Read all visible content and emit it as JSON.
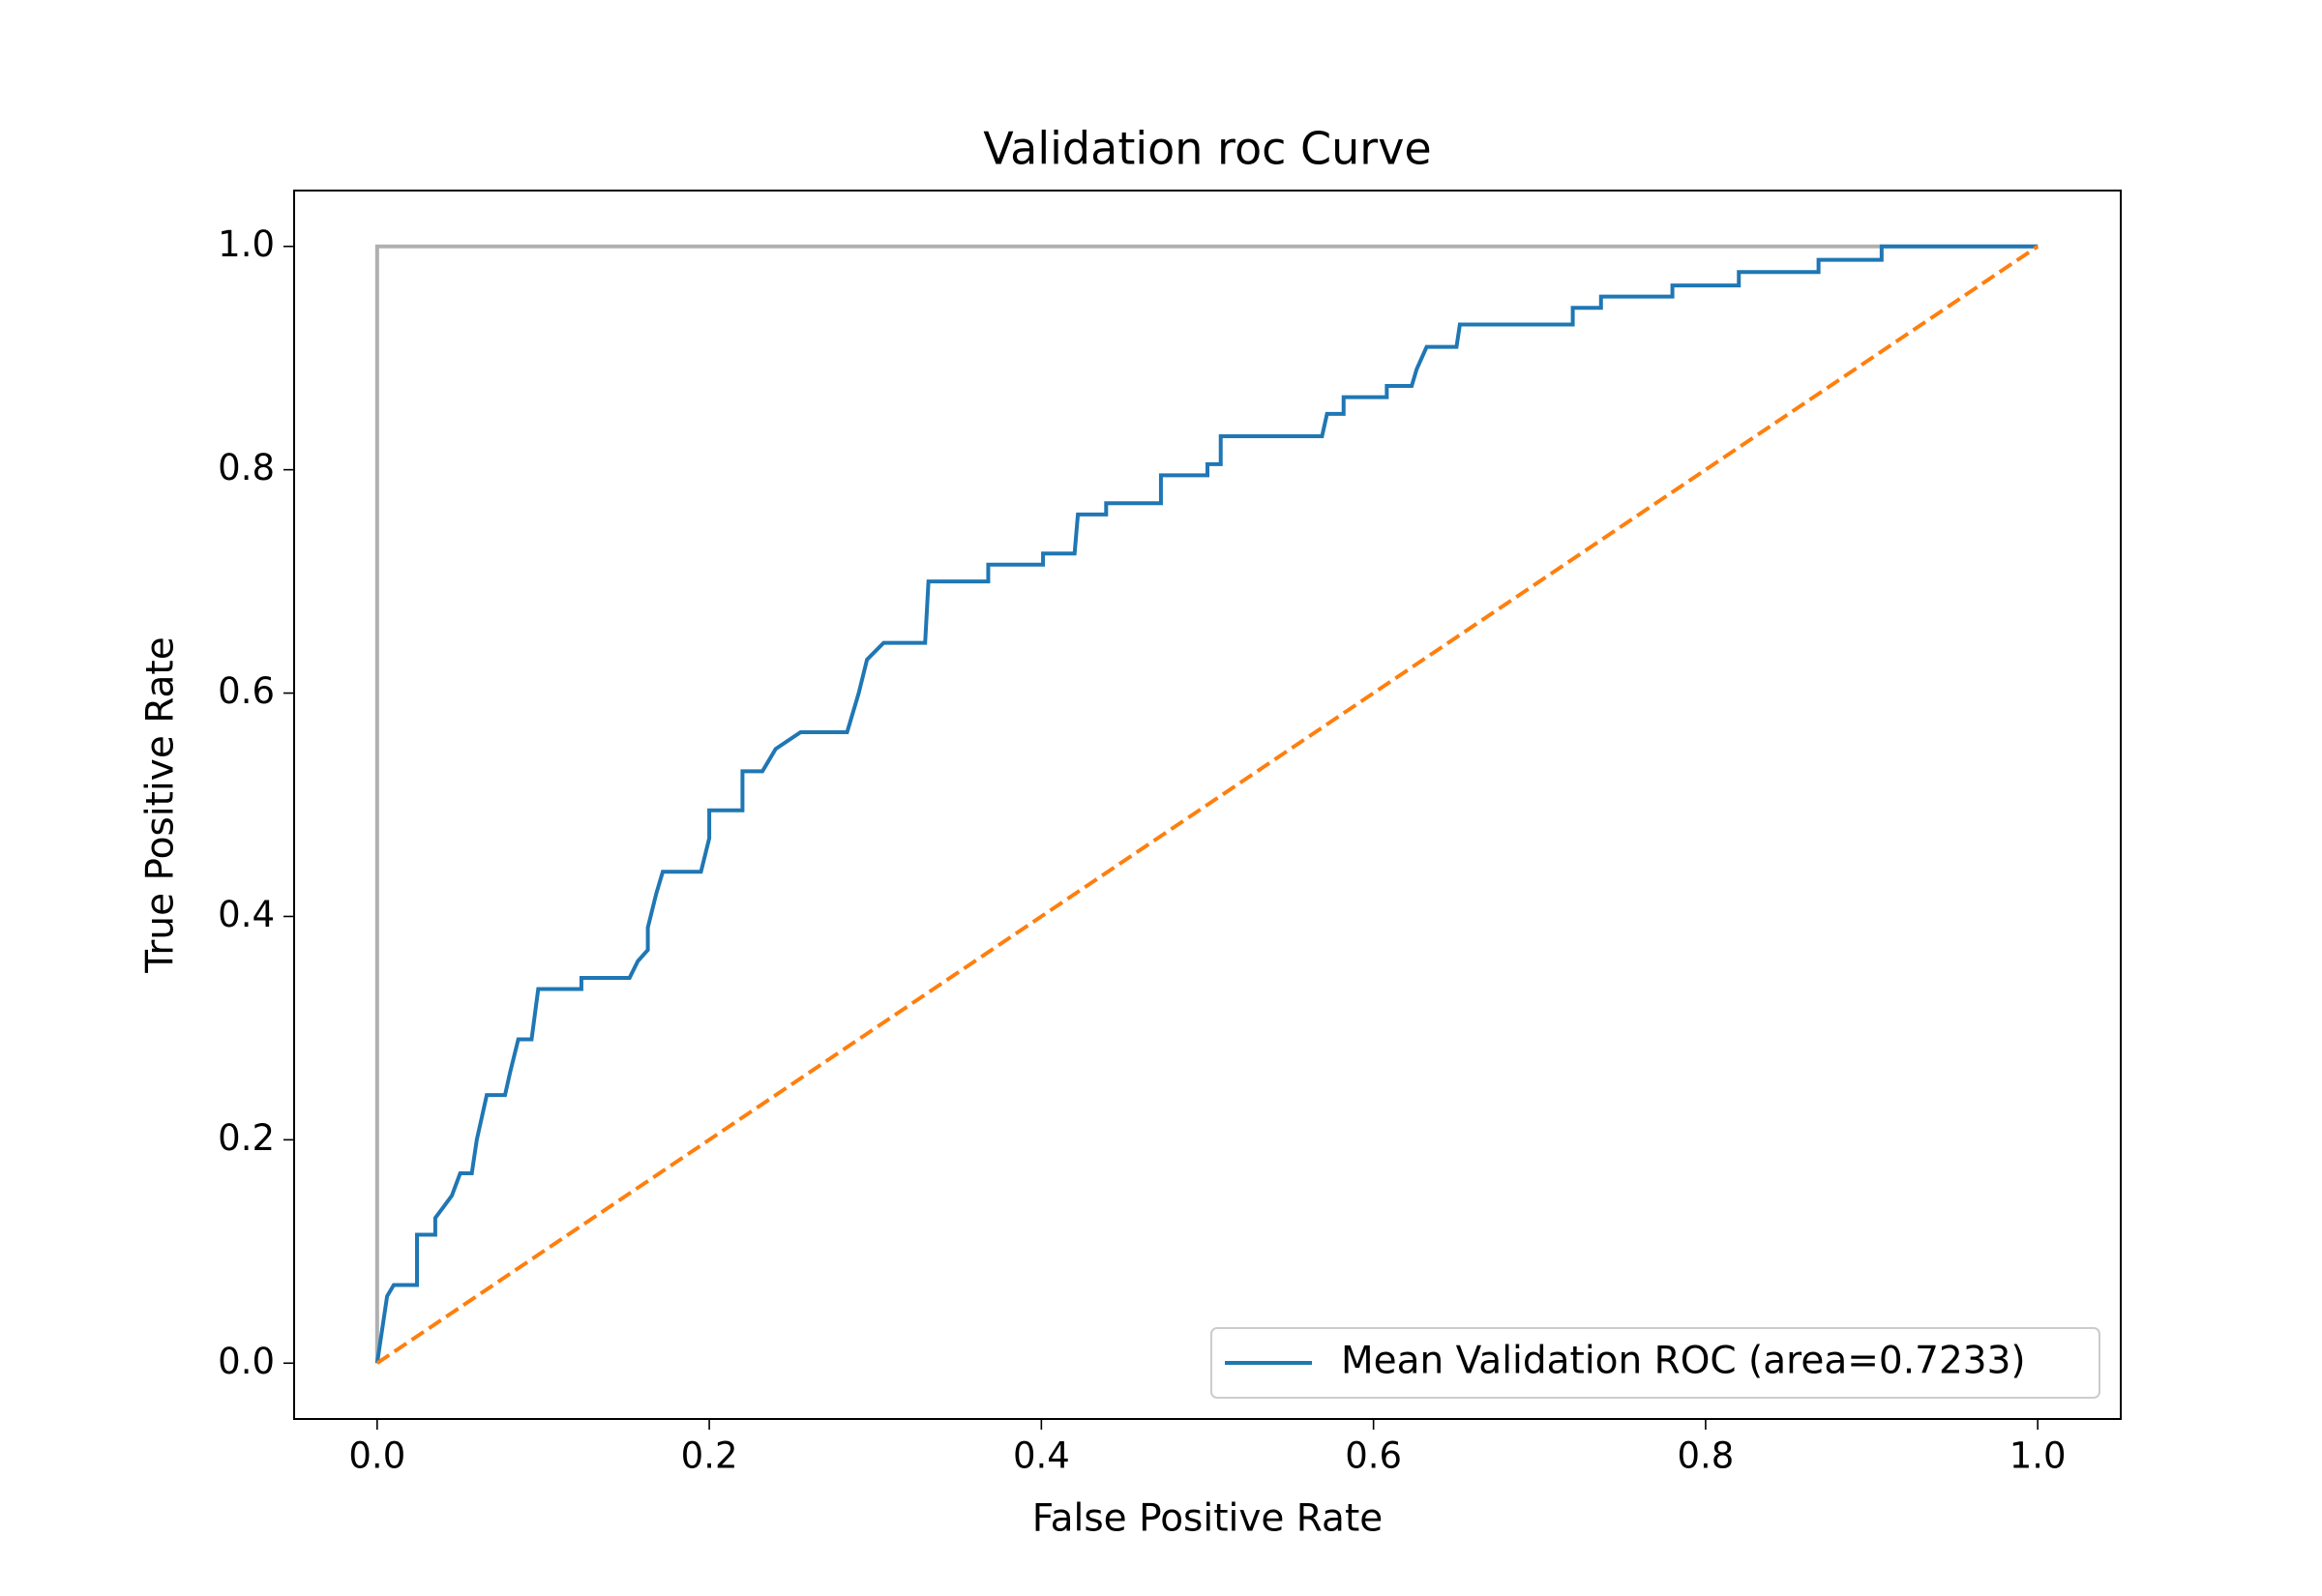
{
  "chart_data": {
    "type": "line",
    "title": "Validation roc Curve",
    "x_label": "False Positive Rate",
    "y_label": "True Positive Rate",
    "xlim": [
      -0.05,
      1.05
    ],
    "ylim": [
      -0.05,
      1.05
    ],
    "xticks": [
      {
        "value": 0,
        "label": "0.0"
      },
      0.2,
      0.4,
      0.6,
      0.8,
      {
        "value": 1,
        "label": "1.0"
      }
    ],
    "yticks": [
      {
        "value": 0,
        "label": "0.0"
      },
      0.2,
      0.4,
      0.6,
      0.8,
      {
        "value": 1,
        "label": "1.0"
      }
    ],
    "grid": false,
    "legend_position": "lower right",
    "series": [
      {
        "color": "#b0b0b0",
        "linestyle": "solid",
        "x": [
          0,
          0,
          1
        ],
        "values": [
          0,
          1,
          1
        ]
      },
      {
        "name": "Mean Validation ROC (area=0.7233)",
        "color": "#1f77b4",
        "linestyle": "solid",
        "x": [
          0,
          0.003,
          0.006,
          0.01,
          0.024,
          0.024,
          0.035,
          0.035,
          0.04,
          0.045,
          0.05,
          0.057,
          0.06,
          0.063,
          0.066,
          0.077,
          0.08,
          0.085,
          0.093,
          0.097,
          0.123,
          0.123,
          0.152,
          0.157,
          0.163,
          0.163,
          0.168,
          0.172,
          0.195,
          0.2,
          0.2,
          0.22,
          0.22,
          0.232,
          0.236,
          0.24,
          0.255,
          0.283,
          0.29,
          0.295,
          0.305,
          0.33,
          0.332,
          0.368,
          0.368,
          0.401,
          0.401,
          0.42,
          0.422,
          0.439,
          0.439,
          0.472,
          0.472,
          0.5,
          0.5,
          0.508,
          0.508,
          0.569,
          0.572,
          0.582,
          0.582,
          0.608,
          0.608,
          0.623,
          0.626,
          0.632,
          0.65,
          0.652,
          0.72,
          0.72,
          0.737,
          0.737,
          0.78,
          0.78,
          0.82,
          0.82,
          0.868,
          0.868,
          0.906,
          0.906,
          1
        ],
        "values": [
          0,
          0.03,
          0.06,
          0.07,
          0.07,
          0.115,
          0.115,
          0.13,
          0.14,
          0.15,
          0.17,
          0.17,
          0.2,
          0.22,
          0.24,
          0.24,
          0.26,
          0.29,
          0.29,
          0.335,
          0.335,
          0.345,
          0.345,
          0.36,
          0.37,
          0.39,
          0.42,
          0.44,
          0.44,
          0.47,
          0.495,
          0.495,
          0.53,
          0.53,
          0.54,
          0.55,
          0.565,
          0.565,
          0.6,
          0.63,
          0.645,
          0.645,
          0.7,
          0.7,
          0.715,
          0.715,
          0.725,
          0.725,
          0.76,
          0.76,
          0.77,
          0.77,
          0.795,
          0.795,
          0.805,
          0.805,
          0.83,
          0.83,
          0.85,
          0.85,
          0.865,
          0.865,
          0.875,
          0.875,
          0.89,
          0.91,
          0.91,
          0.93,
          0.93,
          0.945,
          0.945,
          0.955,
          0.955,
          0.965,
          0.965,
          0.977,
          0.977,
          0.988,
          0.988,
          1,
          1
        ]
      },
      {
        "color": "#ff7f0e",
        "linestyle": "dashed",
        "x": [
          0,
          1
        ],
        "values": [
          0,
          1
        ]
      }
    ]
  }
}
